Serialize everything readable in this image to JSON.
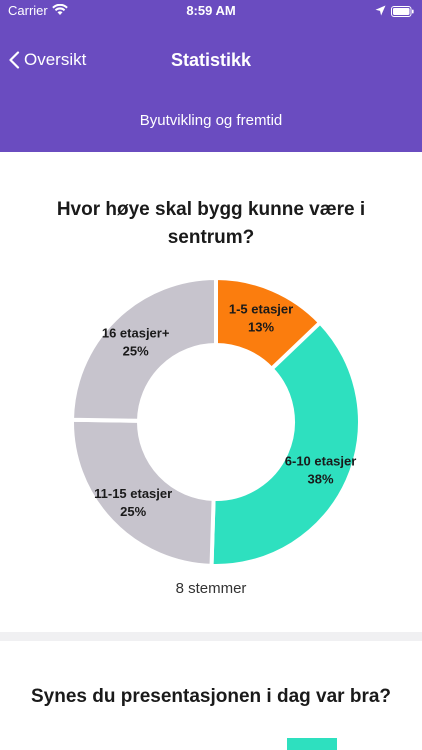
{
  "status_bar": {
    "carrier": "Carrier",
    "time": "8:59 AM",
    "icons": [
      "wifi-icon",
      "location-icon",
      "battery-icon"
    ]
  },
  "nav": {
    "back_label": "Oversikt",
    "title": "Statistikk",
    "subtitle": "Byutvikling og fremtid"
  },
  "colors": {
    "header": "#6a4cc0",
    "orange": "#fb7d0e",
    "teal": "#2ee0bf",
    "gray": "#c7c4cd"
  },
  "question1": {
    "title": "Hvor høye skal bygg kunne være i sentrum?",
    "votes": "8 stemmer"
  },
  "chart_data": {
    "type": "pie",
    "title": "Hvor høye skal bygg kunne være i sentrum?",
    "categories": [
      "1-5 etasjer",
      "6-10 etasjer",
      "11-15 etasjer",
      "16 etasjer+"
    ],
    "values": [
      13,
      38,
      25,
      25
    ],
    "value_labels": [
      "13%",
      "38%",
      "25%",
      "25%"
    ],
    "colors": [
      "#fb7d0e",
      "#2ee0bf",
      "#c7c4cd",
      "#c7c4cd"
    ],
    "donut": true
  },
  "question2": {
    "title": "Synes du presentasjonen i dag var bra?"
  }
}
